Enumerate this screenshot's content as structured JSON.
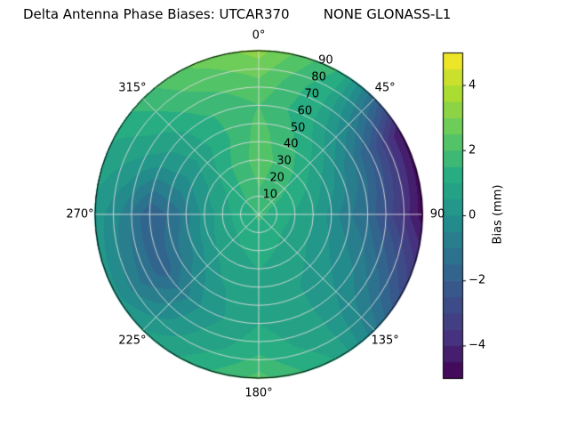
{
  "title": "Delta Antenna Phase Biases: UTCAR370        NONE GLONASS-L1",
  "chart_data": {
    "type": "heatmap",
    "projection": "polar",
    "title": "Delta Antenna Phase Biases: UTCAR370        NONE GLONASS-L1",
    "theta_labels": [
      "0°",
      "45°",
      "90",
      "135°",
      "180°",
      "225°",
      "270°",
      "315°"
    ],
    "theta_angles_deg": [
      0,
      45,
      90,
      135,
      180,
      225,
      270,
      315
    ],
    "radial_tick_labels": [
      "10",
      "20",
      "30",
      "40",
      "50",
      "60",
      "70",
      "80",
      "90"
    ],
    "radial_tick_values": [
      10,
      20,
      30,
      40,
      50,
      60,
      70,
      80,
      90
    ],
    "radial_axis_note": "radius 0 at center to 90 at outer edge",
    "azimuth_deg": [
      0,
      30,
      60,
      90,
      120,
      150,
      180,
      210,
      240,
      270,
      300,
      330,
      360
    ],
    "zenith_deg": [
      0,
      15,
      30,
      45,
      60,
      75,
      90
    ],
    "bias_mm": [
      [
        1.6,
        1.6,
        1.6,
        1.6,
        1.6,
        1.6,
        1.6,
        1.6,
        1.6,
        1.6,
        1.6,
        1.6,
        1.6
      ],
      [
        2.0,
        1.8,
        1.4,
        1.1,
        1.0,
        1.1,
        1.2,
        1.1,
        1.0,
        1.0,
        1.2,
        1.6,
        2.0
      ],
      [
        2.3,
        1.7,
        1.0,
        0.5,
        0.5,
        0.8,
        1.0,
        0.8,
        0.4,
        0.2,
        0.6,
        1.5,
        2.3
      ],
      [
        2.2,
        1.4,
        0.2,
        -0.6,
        0.0,
        0.5,
        0.9,
        0.4,
        -0.7,
        -1.2,
        0.1,
        1.2,
        2.2
      ],
      [
        2.0,
        1.0,
        -1.0,
        -1.6,
        -0.5,
        0.5,
        1.0,
        0.2,
        -1.8,
        -2.0,
        0.3,
        1.4,
        2.0
      ],
      [
        2.5,
        1.0,
        -2.6,
        -3.2,
        -1.4,
        0.6,
        1.4,
        0.5,
        -1.0,
        -0.6,
        0.8,
        1.9,
        2.5
      ],
      [
        3.2,
        1.4,
        -4.6,
        -4.8,
        -2.6,
        0.9,
        2.2,
        1.0,
        0.1,
        0.3,
        1.1,
        2.4,
        3.2
      ]
    ],
    "value_range": [
      -5,
      5
    ],
    "contour_step_mm": 0.5,
    "colormap": "viridis",
    "grid": true,
    "colorbar": {
      "label": "Bias (mm)",
      "tick_values": [
        4,
        2,
        0,
        -2,
        -4
      ],
      "tick_labels": [
        "4",
        "2",
        "0",
        "−2",
        "−4"
      ]
    }
  },
  "colors": {
    "background": "#ffffff",
    "grid": "#dcdcdc",
    "outline": "#000000",
    "text": "#000000",
    "viridis_stops": [
      [
        0.0,
        "#440154"
      ],
      [
        0.125,
        "#46327e"
      ],
      [
        0.25,
        "#3b528b"
      ],
      [
        0.375,
        "#2c728e"
      ],
      [
        0.5,
        "#21918c"
      ],
      [
        0.625,
        "#27ad81"
      ],
      [
        0.75,
        "#5ec962"
      ],
      [
        0.875,
        "#aadc32"
      ],
      [
        1.0,
        "#fde725"
      ]
    ]
  }
}
